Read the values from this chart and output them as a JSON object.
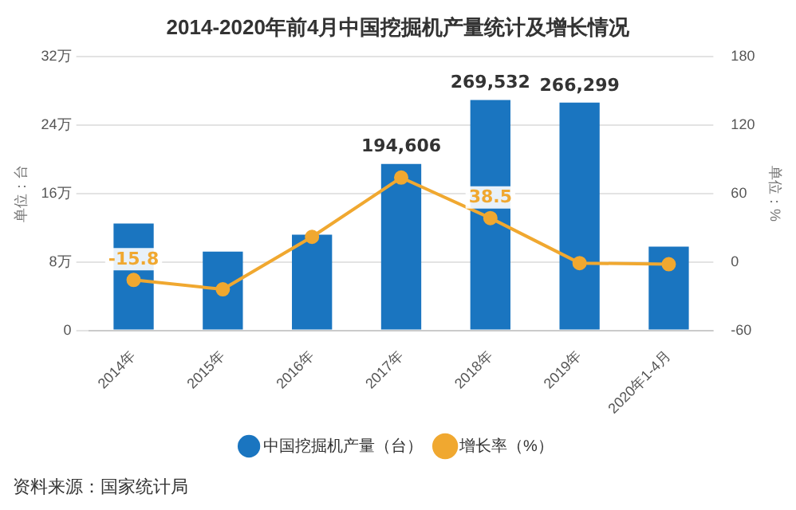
{
  "chart_data": {
    "type": "bar",
    "title": "2014-2020年前4月中国挖掘机产量统计及增长情况",
    "ylabel": "单位：台",
    "y2label": "单位：%",
    "categories": [
      "2014年",
      "2015年",
      "2016年",
      "2017年",
      "2018年",
      "2019年",
      "2020年1-4月"
    ],
    "series": [
      {
        "name": "中国挖掘机产量（台）",
        "color": "#1a75c0",
        "values": [
          12.5,
          9.2,
          11.2,
          19.46,
          26.95,
          26.63,
          9.8
        ]
      },
      {
        "name": "增长率（%）",
        "type": "line",
        "axis": "y2",
        "color": "#f0a830",
        "marker": "circle",
        "values": [
          -15.8,
          -24,
          22,
          74,
          38.5,
          -1,
          -2
        ],
        "value_labels": [
          "-15.8",
          null,
          null,
          null,
          "38.5",
          null,
          null
        ]
      }
    ],
    "ylim": [
      0,
      32
    ],
    "yticks": [
      0,
      {
        "value": 8,
        "label": "8万"
      },
      {
        "value": 16,
        "label": "16万"
      },
      {
        "value": 24,
        "label": "24万"
      },
      {
        "value": 32,
        "label": "32万"
      }
    ],
    "y2lim": [
      -60,
      180
    ],
    "y2ticks": [
      -60,
      0,
      60,
      120,
      180
    ],
    "grid": "y",
    "legend": "bottom",
    "annotations": [
      {
        "text": "194,606",
        "x": "2017年",
        "y": 19.46
      },
      {
        "text": "269,532",
        "x": "2018年",
        "y": 26.95
      },
      {
        "text": "266,299",
        "x": "2019年",
        "y": 26.63
      },
      "资料来源：国家统计局"
    ]
  }
}
